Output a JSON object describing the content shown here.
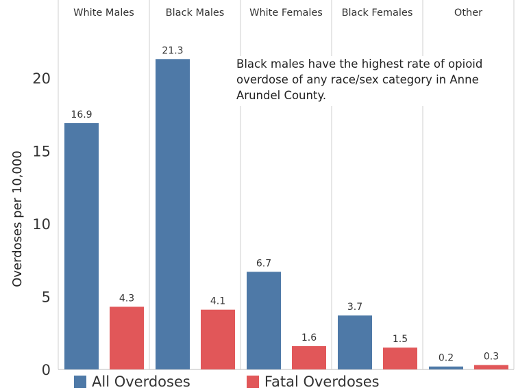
{
  "chart_data": {
    "type": "bar",
    "panels": [
      "White Males",
      "Black Males",
      "White Females",
      "Black Females",
      "Other"
    ],
    "series": [
      {
        "name": "All Overdoses",
        "color": "#4e79a7",
        "values": [
          16.9,
          21.3,
          6.7,
          3.7,
          0.2
        ]
      },
      {
        "name": "Fatal Overdoses",
        "color": "#e15759",
        "values": [
          4.3,
          4.1,
          1.6,
          1.5,
          0.3
        ]
      }
    ],
    "ylabel": "Overdoses per 10,000",
    "yticks": [
      0,
      5,
      10,
      15,
      20
    ],
    "ylim": [
      0,
      23.5
    ],
    "grid": false,
    "legend_position": "bottom",
    "annotation": "Black males have the highest rate of opioid overdose of any race/sex category in Anne Arundel County."
  }
}
